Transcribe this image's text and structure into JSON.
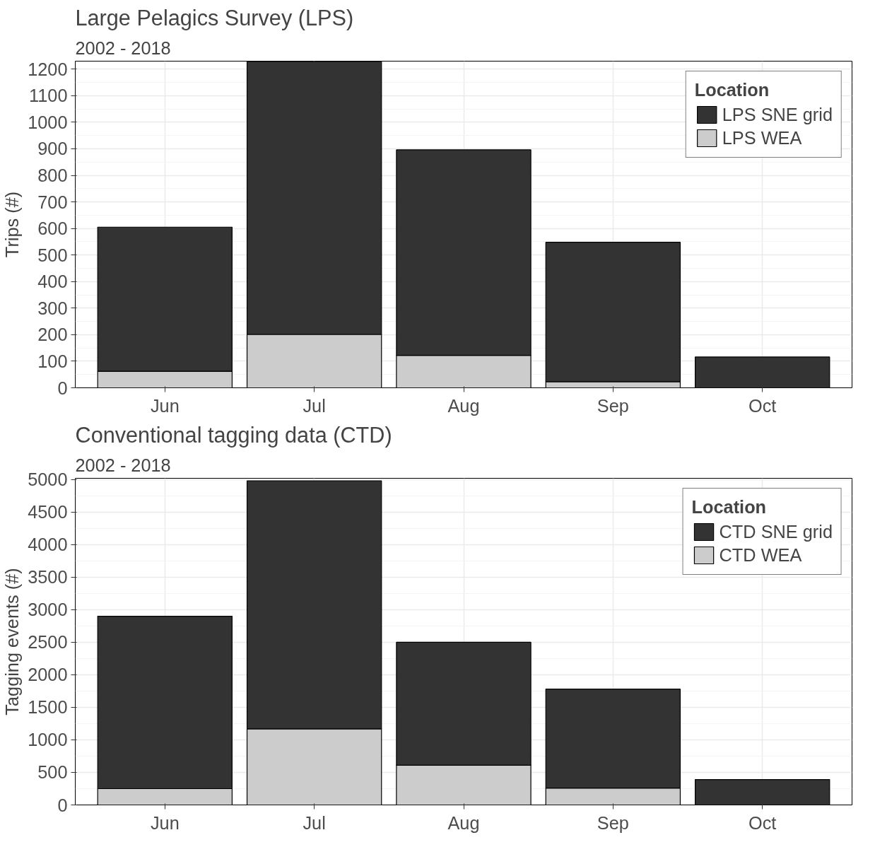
{
  "chart_data": [
    {
      "type": "bar",
      "title": "Large Pelagics Survey (LPS)",
      "subtitle": "2002 - 2018",
      "ylabel": "Trips (#)",
      "legend_title": "Location",
      "categories": [
        "Jun",
        "Jul",
        "Aug",
        "Sep",
        "Oct"
      ],
      "stacked": true,
      "series": [
        {
          "name": "LPS WEA",
          "color": "#cccccc",
          "values": [
            62,
            201,
            122,
            23,
            0
          ]
        },
        {
          "name": "LPS SNE grid",
          "color": "#333333",
          "values": [
            543,
            1027,
            774,
            525,
            116
          ]
        }
      ],
      "ylim": [
        0,
        1230
      ],
      "yticks": [
        0,
        100,
        200,
        300,
        400,
        500,
        600,
        700,
        800,
        900,
        1000,
        1100,
        1200
      ],
      "grid": true,
      "legend": "top right"
    },
    {
      "type": "bar",
      "title": "Conventional tagging data (CTD)",
      "subtitle": "2002 - 2018",
      "ylabel": "Tagging events (#)",
      "legend_title": "Location",
      "categories": [
        "Jun",
        "Jul",
        "Aug",
        "Sep",
        "Oct"
      ],
      "stacked": true,
      "series": [
        {
          "name": "CTD WEA",
          "color": "#cccccc",
          "values": [
            250,
            1170,
            610,
            260,
            0
          ]
        },
        {
          "name": "CTD SNE grid",
          "color": "#333333",
          "values": [
            2650,
            3810,
            1890,
            1520,
            390
          ]
        }
      ],
      "ylim": [
        0,
        5020
      ],
      "yticks": [
        0,
        500,
        1000,
        1500,
        2000,
        2500,
        3000,
        3500,
        4000,
        4500,
        5000
      ],
      "grid": true,
      "legend": "top right"
    }
  ]
}
